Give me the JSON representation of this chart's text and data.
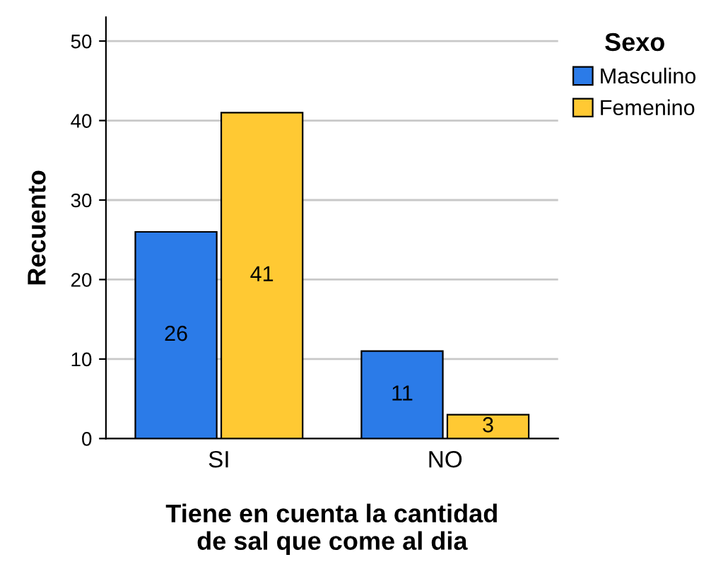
{
  "chart_data": {
    "type": "bar",
    "xlabel": "Tiene en cuenta la cantidad\nde sal que come al dia",
    "ylabel": "Recuento",
    "legend_title": "Sexo",
    "categories": [
      "SI",
      "NO"
    ],
    "series": [
      {
        "name": "Masculino",
        "color": "#2b7be8",
        "values": [
          26,
          11
        ]
      },
      {
        "name": "Femenino",
        "color": "#ffc933",
        "values": [
          41,
          3
        ]
      }
    ],
    "ylim": [
      0,
      53
    ],
    "yticks": [
      0,
      10,
      20,
      30,
      40,
      50
    ],
    "grid": "y",
    "legend": "top right",
    "data_labels": true
  }
}
